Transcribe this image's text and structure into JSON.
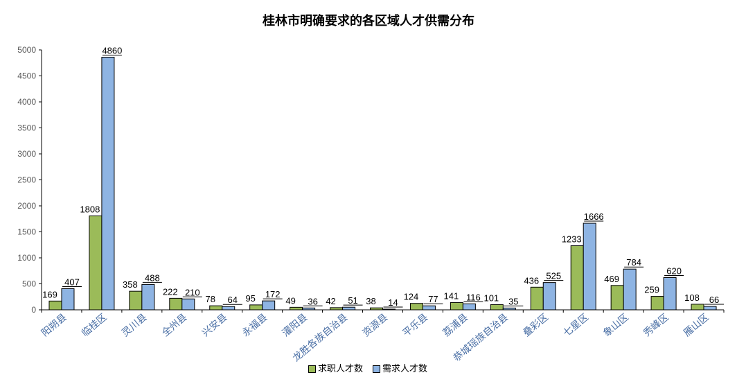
{
  "chart_data": {
    "type": "bar",
    "title": "桂林市明确要求的各区域人才供需分布",
    "categories": [
      "阳朔县",
      "临桂区",
      "灵川县",
      "全州县",
      "兴安县",
      "永福县",
      "灌阳县",
      "龙胜各族自治县",
      "资源县",
      "平乐县",
      "荔浦县",
      "恭城瑶族自治县",
      "叠彩区",
      "七星区",
      "象山区",
      "秀峰区",
      "雁山区"
    ],
    "series": [
      {
        "name": "求职人才数",
        "color": "#9bbb59",
        "values": [
          169,
          1808,
          358,
          222,
          78,
          95,
          49,
          42,
          38,
          124,
          141,
          101,
          436,
          1233,
          469,
          259,
          108
        ]
      },
      {
        "name": "需求人才数",
        "color": "#8eb4e3",
        "values": [
          407,
          4860,
          488,
          210,
          64,
          172,
          36,
          51,
          14,
          77,
          116,
          35,
          525,
          1666,
          784,
          620,
          66
        ]
      }
    ],
    "ylim": [
      0,
      5000
    ],
    "yticks": [
      0,
      500,
      1000,
      1500,
      2000,
      2500,
      3000,
      3500,
      4000,
      4500,
      5000
    ],
    "legend": "bottom",
    "grid": false
  }
}
